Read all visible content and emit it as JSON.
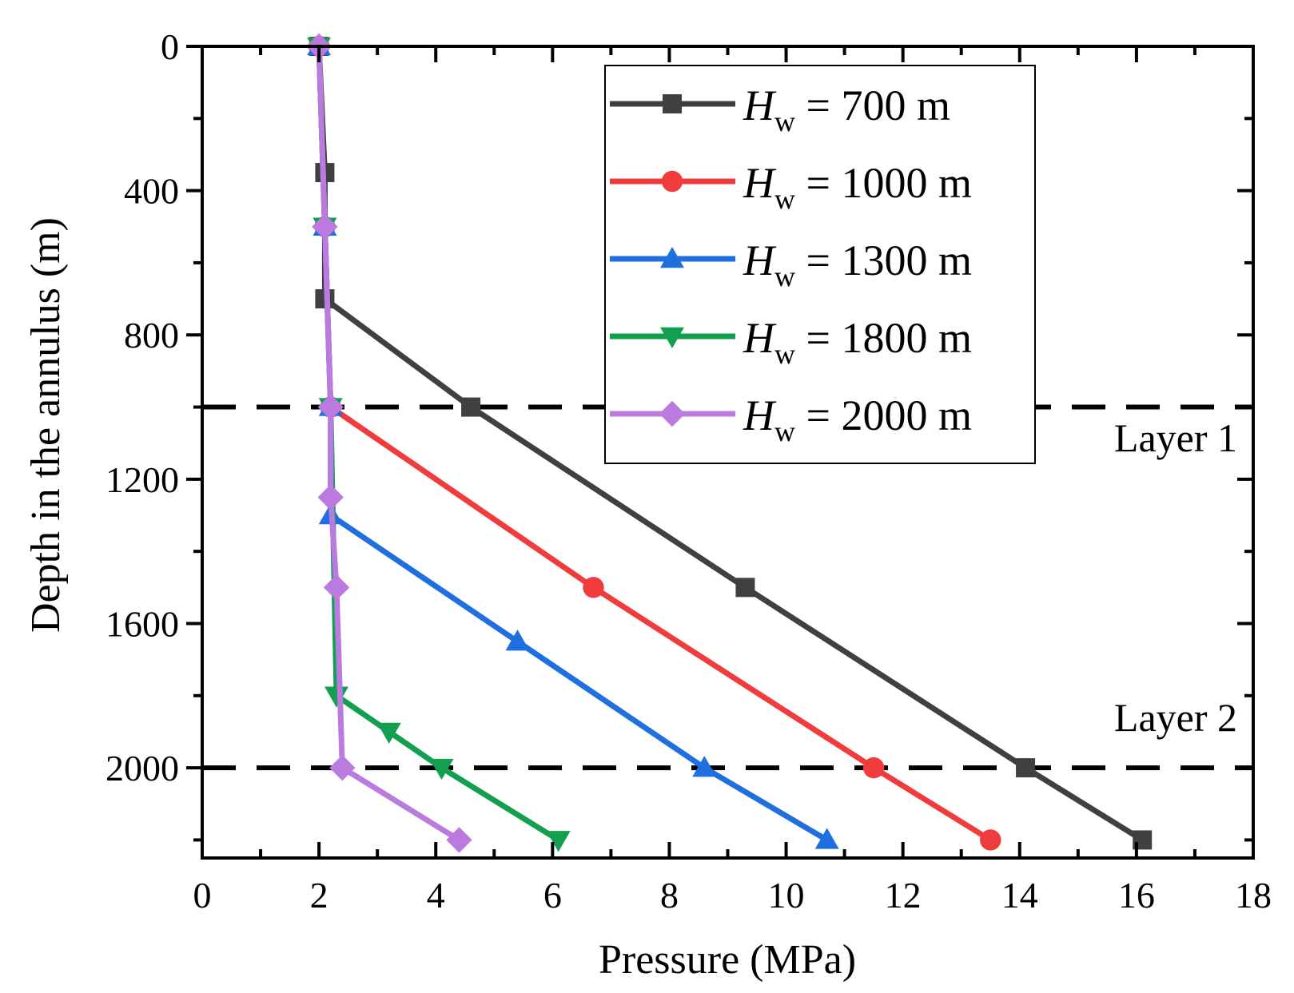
{
  "chart_data": {
    "type": "line",
    "title": "",
    "xlabel": "Pressure (MPa)",
    "ylabel": "Depth in the annulus (m)",
    "xlim": [
      0,
      18
    ],
    "ylim": [
      0,
      2250
    ],
    "y_inverted": true,
    "xticks": [
      0,
      2,
      4,
      6,
      8,
      10,
      12,
      14,
      16,
      18
    ],
    "yticks": [
      0,
      400,
      800,
      1200,
      1600,
      2000
    ],
    "legend_position": "top-right",
    "series": [
      {
        "name": "700 m",
        "legend_var": "H",
        "legend_sub": "w",
        "legend_rest": " = 700 m",
        "color": "#404040",
        "marker": "square",
        "points": [
          [
            2,
            0
          ],
          [
            2.1,
            350
          ],
          [
            2.1,
            700
          ],
          [
            4.6,
            1000
          ],
          [
            9.3,
            1500
          ],
          [
            14.1,
            2000
          ],
          [
            16.1,
            2200
          ]
        ]
      },
      {
        "name": "1000 m",
        "legend_var": "H",
        "legend_sub": "w",
        "legend_rest": " = 1000 m",
        "color": "#f03c3c",
        "marker": "circle",
        "points": [
          [
            2,
            0
          ],
          [
            2.1,
            500
          ],
          [
            2.2,
            1000
          ],
          [
            6.7,
            1500
          ],
          [
            11.5,
            2000
          ],
          [
            13.5,
            2200
          ]
        ]
      },
      {
        "name": "1300 m",
        "legend_var": "H",
        "legend_sub": "w",
        "legend_rest": " = 1300 m",
        "color": "#1f6fe0",
        "marker": "triangle-up",
        "points": [
          [
            2,
            0
          ],
          [
            2.1,
            500
          ],
          [
            2.2,
            1000
          ],
          [
            2.2,
            1300
          ],
          [
            5.4,
            1650
          ],
          [
            8.6,
            2000
          ],
          [
            10.7,
            2200
          ]
        ]
      },
      {
        "name": "1800 m",
        "legend_var": "H",
        "legend_sub": "w",
        "legend_rest": " = 1800 m",
        "color": "#12a050",
        "marker": "triangle-down",
        "points": [
          [
            2,
            0
          ],
          [
            2.1,
            500
          ],
          [
            2.2,
            1000
          ],
          [
            2.3,
            1800
          ],
          [
            3.2,
            1900
          ],
          [
            4.1,
            2000
          ],
          [
            6.1,
            2200
          ]
        ]
      },
      {
        "name": "2000 m",
        "legend_var": "H",
        "legend_sub": "w",
        "legend_rest": " = 2000 m",
        "color": "#bb7ae0",
        "marker": "diamond",
        "points": [
          [
            2,
            0
          ],
          [
            2.1,
            500
          ],
          [
            2.2,
            1000
          ],
          [
            2.2,
            1250
          ],
          [
            2.3,
            1500
          ],
          [
            2.4,
            2000
          ],
          [
            4.4,
            2200
          ]
        ]
      }
    ],
    "reference_lines": [
      {
        "y": 1000,
        "label": "Layer 1"
      },
      {
        "y": 2000,
        "label": "Layer 2"
      }
    ]
  }
}
